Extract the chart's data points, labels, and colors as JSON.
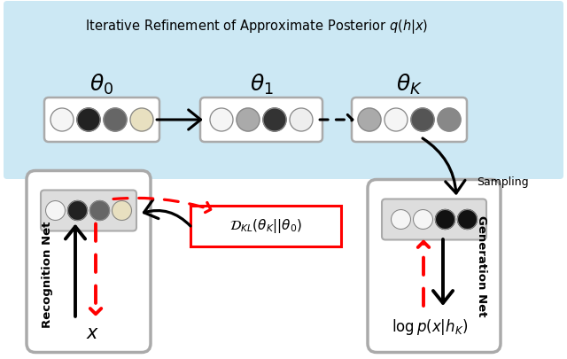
{
  "title": "Iterative Refinement of Approximate Posterior $q(h|x)$",
  "bg_color": "#cce8f4",
  "fig_bg": "#ffffff",
  "theta0_label": "$\\theta_0$",
  "theta1_label": "$\\theta_1$",
  "thetaK_label": "$\\theta_K$",
  "recog_label": "Recognition Net",
  "gen_label": "Generation Net",
  "x_label": "$x$",
  "logp_label": "$\\log p(x|h_K)$",
  "kl_label": "$\\mathcal{D}_{KL}(\\theta_K||\\theta_0)$",
  "sampling_label": "Sampling",
  "node_colors_theta0": [
    "#f5f5f5",
    "#222222",
    "#666666",
    "#e8e0c0"
  ],
  "node_colors_theta1": [
    "#f5f5f5",
    "#aaaaaa",
    "#333333",
    "#eeeeee"
  ],
  "node_colors_thetaK": [
    "#aaaaaa",
    "#f5f5f5",
    "#555555",
    "#888888"
  ],
  "node_colors_gen": [
    "#f5f5f5",
    "#f5f5f5",
    "#111111",
    "#111111"
  ],
  "node_colors_recog": [
    "#f5f5f5",
    "#222222",
    "#666666",
    "#e8e0c0"
  ]
}
